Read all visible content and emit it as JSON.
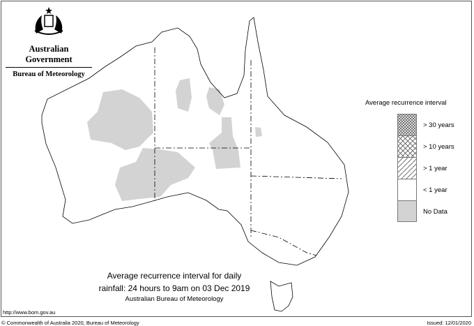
{
  "header": {
    "government": "Australian Government",
    "bureau": "Bureau of Meteorology"
  },
  "legend": {
    "title": "Average recurrence interval",
    "items": [
      {
        "label": "> 30 years",
        "pattern": "dense-crosshatch"
      },
      {
        "label": "> 10 years",
        "pattern": "crosshatch"
      },
      {
        "label": "> 1 year",
        "pattern": "diagonal-hatch"
      },
      {
        "label": "< 1 year",
        "pattern": "none",
        "color": "#ffffff"
      },
      {
        "label": "No Data",
        "pattern": "solid",
        "color": "#d3d3d3"
      }
    ]
  },
  "caption": {
    "line1": "Average recurrence interval for daily",
    "line2": "rainfall: 24 hours to 9am on 03 Dec 2019",
    "line3": "Australian Bureau of Meteorology"
  },
  "footer": {
    "url": "http://www.bom.gov.au",
    "copyright": "© Commonwealth of Australia 2020, Bureau of Meteorology",
    "issued": "Issued: 12/01/2020"
  },
  "colors": {
    "no_data": "#d3d3d3",
    "outline": "#000000"
  }
}
